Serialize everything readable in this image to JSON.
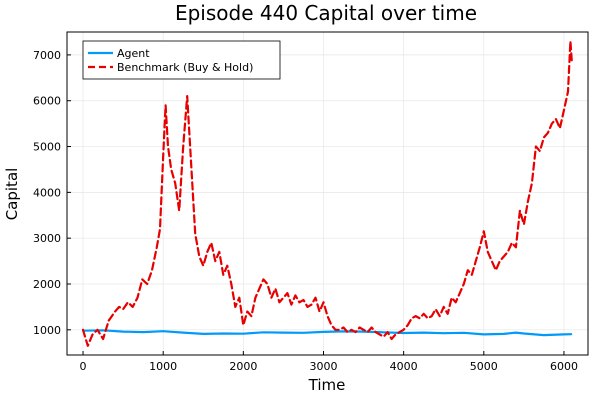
{
  "chart_data": {
    "type": "line",
    "title": "Episode 440 Capital over time",
    "xlabel": "Time",
    "ylabel": "Capital",
    "xlim": [
      -200,
      6300
    ],
    "ylim": [
      450,
      7500
    ],
    "xticks": [
      0,
      1000,
      2000,
      3000,
      4000,
      5000,
      6000
    ],
    "yticks": [
      1000,
      2000,
      3000,
      4000,
      5000,
      6000,
      7000
    ],
    "grid": true,
    "legend_position": "top-left",
    "series": [
      {
        "name": "Agent",
        "color": "#009AF9",
        "style": "solid",
        "x": [
          0,
          250,
          500,
          750,
          1000,
          1250,
          1500,
          1750,
          2000,
          2250,
          2500,
          2750,
          3000,
          3250,
          3500,
          3750,
          4000,
          4250,
          4500,
          4750,
          5000,
          5250,
          5400,
          5500,
          5750,
          6000,
          6090
        ],
        "y": [
          980,
          990,
          960,
          950,
          970,
          940,
          910,
          920,
          915,
          945,
          940,
          935,
          955,
          965,
          960,
          945,
          930,
          940,
          925,
          935,
          900,
          910,
          940,
          920,
          885,
          900,
          905
        ]
      },
      {
        "name": "Benchmark (Buy & Hold)",
        "color": "#E80000",
        "style": "dashed",
        "x": [
          0,
          60,
          120,
          180,
          250,
          320,
          400,
          450,
          500,
          560,
          620,
          680,
          740,
          800,
          860,
          920,
          960,
          1000,
          1030,
          1060,
          1100,
          1150,
          1200,
          1250,
          1300,
          1330,
          1360,
          1400,
          1450,
          1500,
          1550,
          1600,
          1650,
          1700,
          1750,
          1800,
          1850,
          1900,
          1950,
          2000,
          2050,
          2100,
          2150,
          2200,
          2250,
          2300,
          2350,
          2400,
          2450,
          2500,
          2550,
          2600,
          2650,
          2700,
          2750,
          2800,
          2850,
          2900,
          2950,
          3000,
          3050,
          3100,
          3150,
          3200,
          3250,
          3300,
          3350,
          3400,
          3450,
          3500,
          3550,
          3600,
          3650,
          3700,
          3750,
          3800,
          3850,
          3900,
          3950,
          4000,
          4050,
          4100,
          4150,
          4200,
          4250,
          4300,
          4350,
          4400,
          4450,
          4500,
          4550,
          4600,
          4650,
          4700,
          4750,
          4800,
          4850,
          4900,
          4950,
          5000,
          5050,
          5100,
          5150,
          5200,
          5250,
          5300,
          5350,
          5400,
          5450,
          5500,
          5550,
          5600,
          5650,
          5700,
          5750,
          5800,
          5850,
          5900,
          5950,
          6000,
          6050,
          6080,
          6100
        ],
        "y": [
          1000,
          650,
          900,
          1000,
          800,
          1200,
          1400,
          1500,
          1450,
          1600,
          1500,
          1700,
          2100,
          2000,
          2300,
          2800,
          3200,
          4800,
          5900,
          5000,
          4500,
          4200,
          3600,
          5000,
          6100,
          5200,
          4300,
          3100,
          2600,
          2400,
          2700,
          2900,
          2500,
          2700,
          2200,
          2400,
          2000,
          1500,
          1700,
          1100,
          1400,
          1300,
          1700,
          1900,
          2100,
          2000,
          1700,
          1900,
          1600,
          1700,
          1800,
          1550,
          1750,
          1600,
          1650,
          1500,
          1550,
          1700,
          1400,
          1600,
          1300,
          1100,
          1000,
          1000,
          1050,
          950,
          1000,
          950,
          1050,
          1000,
          950,
          1050,
          950,
          900,
          850,
          950,
          800,
          900,
          950,
          1000,
          1100,
          1250,
          1300,
          1250,
          1350,
          1250,
          1300,
          1450,
          1300,
          1500,
          1350,
          1700,
          1600,
          1800,
          2000,
          2300,
          2200,
          2500,
          2800,
          3150,
          2700,
          2500,
          2300,
          2500,
          2600,
          2700,
          2900,
          2800,
          3600,
          3300,
          3800,
          4200,
          5000,
          4900,
          5200,
          5300,
          5500,
          5600,
          5400,
          5800,
          6200,
          7300,
          6800
        ]
      }
    ]
  }
}
